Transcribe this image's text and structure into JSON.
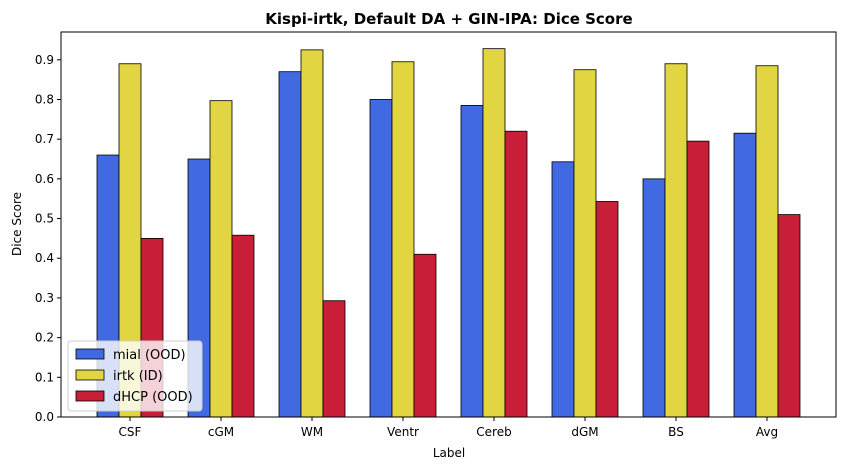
{
  "chart_data": {
    "type": "bar",
    "title": "Kispi-irtk, Default DA + GIN-IPA: Dice Score",
    "xlabel": "Label",
    "ylabel": "Dice Score",
    "ylim": [
      0,
      0.97
    ],
    "yticks": [
      "0.0",
      "0.1",
      "0.2",
      "0.3",
      "0.4",
      "0.5",
      "0.6",
      "0.7",
      "0.8",
      "0.9"
    ],
    "grid": false,
    "legend_position": "lower-left",
    "categories": [
      "CSF",
      "cGM",
      "WM",
      "Ventr",
      "Cereb",
      "dGM",
      "BS",
      "Avg"
    ],
    "series": [
      {
        "name": "mial (OOD)",
        "color": "#4169e1",
        "values": [
          0.66,
          0.65,
          0.87,
          0.8,
          0.785,
          0.643,
          0.6,
          0.715
        ]
      },
      {
        "name": "irtk (ID)",
        "color": "#e1d642",
        "values": [
          0.89,
          0.797,
          0.925,
          0.895,
          0.928,
          0.875,
          0.89,
          0.885
        ]
      },
      {
        "name": "dHCP (OOD)",
        "color": "#c81e37",
        "values": [
          0.45,
          0.458,
          0.293,
          0.41,
          0.72,
          0.543,
          0.695,
          0.51
        ]
      }
    ]
  }
}
